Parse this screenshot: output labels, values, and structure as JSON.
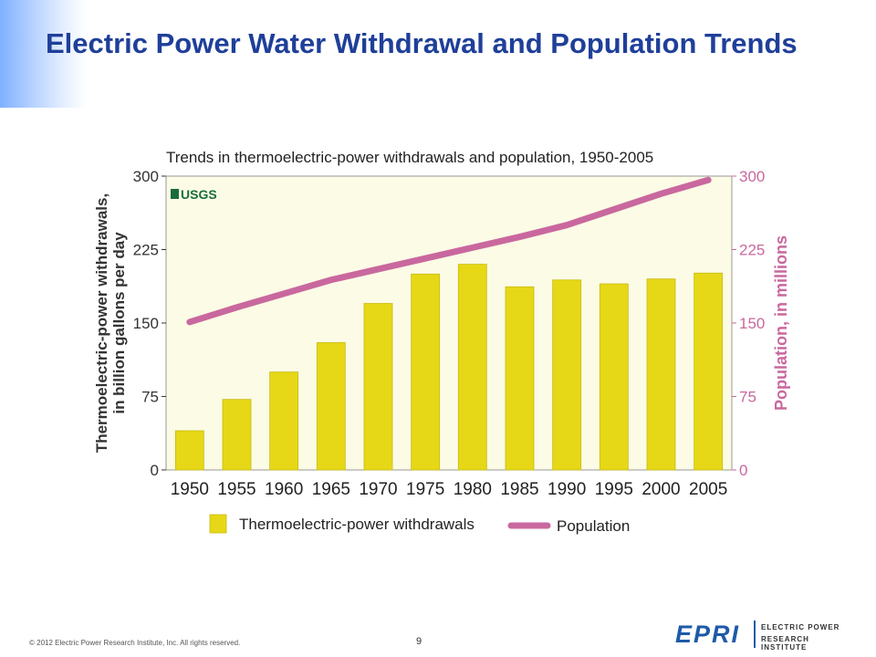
{
  "slide": {
    "title": "Electric Power Water Withdrawal and Population Trends",
    "footer": "© 2012 Electric Power Research Institute, Inc. All rights reserved.",
    "page_number": "9",
    "logo_word": "EPRI",
    "logo_name_line1": "ELECTRIC POWER",
    "logo_name_line2": "RESEARCH INSTITUTE"
  },
  "chart_data": {
    "type": "bar",
    "title": "Trends in thermoelectric-power withdrawals and population, 1950-2005",
    "badge": "USGS",
    "categories": [
      "1950",
      "1955",
      "1960",
      "1965",
      "1970",
      "1975",
      "1980",
      "1985",
      "1990",
      "1995",
      "2000",
      "2005"
    ],
    "series": [
      {
        "name": "Thermoelectric-power withdrawals",
        "kind": "bar",
        "axis": "left",
        "color": "#e6d817",
        "values": [
          40,
          72,
          100,
          130,
          170,
          200,
          210,
          187,
          194,
          190,
          195,
          201
        ]
      },
      {
        "name": "Population",
        "kind": "line",
        "axis": "right",
        "color": "#c9689e",
        "values": [
          151,
          166,
          180,
          194,
          205,
          216,
          227,
          238,
          250,
          266,
          282,
          296
        ]
      }
    ],
    "ylabel_left_line1": "Thermoelectric-power withdrawals,",
    "ylabel_left_line2": "in billion gallons per day",
    "ylabel_right": "Population, in millions",
    "ylim_left": [
      0,
      300
    ],
    "ylim_right": [
      0,
      300
    ],
    "yticks_left": [
      "0",
      "75",
      "150",
      "225",
      "300"
    ],
    "yticks_right": [
      "0",
      "75",
      "150",
      "225",
      "300"
    ],
    "left_axis_color": "#333333",
    "right_axis_color": "#c9689e",
    "plot_background": "#fbfbe6",
    "grid": false,
    "legend_position": "bottom"
  }
}
